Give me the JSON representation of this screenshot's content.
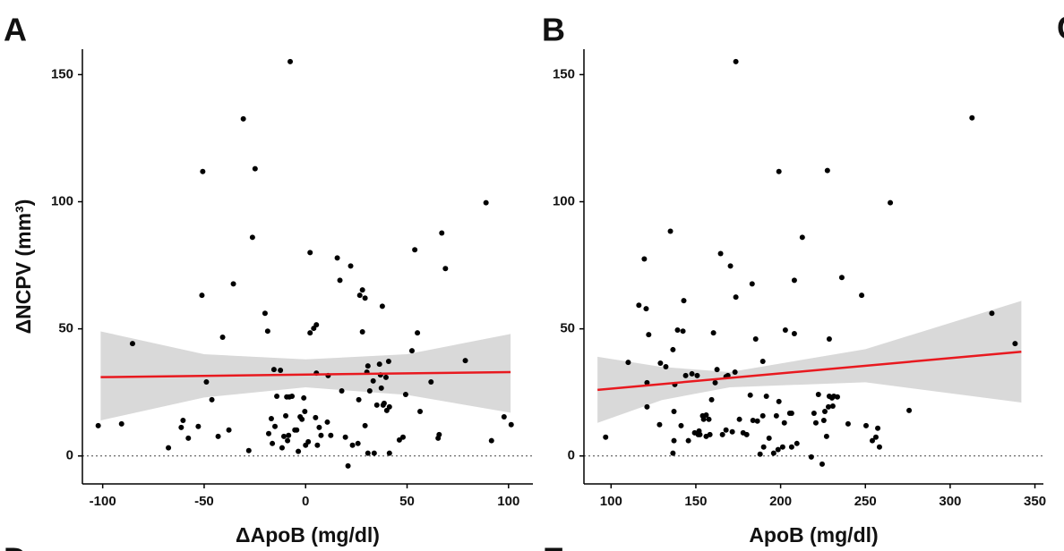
{
  "panel_labels": [
    "C",
    "D",
    "E"
  ],
  "chart_data": [
    {
      "type": "scatter",
      "panel": "A",
      "xlabel": "ΔApoB (mg/dl)",
      "ylabel": "ΔNCPV (mm³)",
      "xlim": [
        -110,
        112
      ],
      "ylim": [
        -11,
        160
      ],
      "xticks": [
        -100,
        -50,
        0,
        50,
        100
      ],
      "yticks": [
        0,
        50,
        100,
        150
      ],
      "reference_line": 0,
      "color": "#000000",
      "x": [
        -102.2,
        -90.7,
        -85.3,
        -67.6,
        -61.3,
        -60.4,
        -57.8,
        -52.9,
        -48.9,
        -46.2,
        -51.1,
        -43.1,
        -40.9,
        -37.8,
        -35.6,
        -50.7,
        -30.7,
        -26.2,
        -24.9,
        -20.0,
        -18.7,
        -28.0,
        -18.2,
        -16.9,
        -16.4,
        -15.6,
        -15.1,
        -14.2,
        -12.4,
        -11.6,
        -10.7,
        -9.8,
        -9.3,
        -8.9,
        -8.4,
        -8.0,
        -7.6,
        -6.7,
        -5.3,
        -4.4,
        -3.6,
        -2.7,
        -1.8,
        -0.9,
        -0.4,
        0,
        1.3,
        2.2,
        2.2,
        4.0,
        4.9,
        5.3,
        5.8,
        6.7,
        7.6,
        5.3,
        10.7,
        11.1,
        12.4,
        15.6,
        16.9,
        17.8,
        19.6,
        20.9,
        22.2,
        23.1,
        25.8,
        28.0,
        29.3,
        30.2,
        30.7,
        31.6,
        33.3,
        36.4,
        36.9,
        37.3,
        37.8,
        38.2,
        38.7,
        39.6,
        40.0,
        40.9,
        41.3,
        41.3,
        35.1,
        29.3,
        26.2,
        26.7,
        30.7,
        28.0,
        33.8,
        46.2,
        48.0,
        49.3,
        52.4,
        53.8,
        55.1,
        56.4,
        61.8,
        65.3,
        65.8,
        67.1,
        68.9,
        78.7,
        88.9,
        91.6,
        97.8,
        101.3
      ],
      "y": [
        11.9,
        12.6,
        44.2,
        3.2,
        11.2,
        14.0,
        7.0,
        11.6,
        29.1,
        22.1,
        63.2,
        7.7,
        46.7,
        10.2,
        67.7,
        111.9,
        132.6,
        86.0,
        113.0,
        56.1,
        49.1,
        2.1,
        8.8,
        14.7,
        4.9,
        34.0,
        11.6,
        23.5,
        33.7,
        3.2,
        7.7,
        15.8,
        23.2,
        6.0,
        8.1,
        23.2,
        155.1,
        23.5,
        10.2,
        10.2,
        1.8,
        15.4,
        14.4,
        22.8,
        17.5,
        4.2,
        5.6,
        80.0,
        48.4,
        50.2,
        15.1,
        51.6,
        4.2,
        11.2,
        8.1,
        32.6,
        13.3,
        31.6,
        8.1,
        77.9,
        69.1,
        25.6,
        7.4,
        -3.9,
        74.7,
        4.2,
        4.9,
        65.3,
        11.9,
        33.0,
        35.4,
        25.6,
        29.5,
        36.1,
        31.9,
        26.7,
        58.9,
        20.0,
        20.7,
        30.9,
        17.9,
        37.2,
        1.1,
        19.3,
        20.0,
        62.1,
        22.1,
        63.2,
        1.1,
        48.8,
        1.1,
        6.3,
        7.4,
        24.2,
        41.4,
        81.1,
        48.4,
        17.5,
        29.1,
        7.0,
        8.4,
        87.7,
        73.7,
        37.5,
        99.6,
        6.0,
        15.4,
        12.3
      ],
      "fit": {
        "x": [
          -101,
          101
        ],
        "y": [
          31,
          33
        ],
        "color": "#e8191f"
      },
      "band": {
        "x": [
          -101,
          -50,
          0,
          50,
          101
        ],
        "lower": [
          14,
          23,
          27,
          24,
          17
        ],
        "upper": [
          49,
          40,
          38,
          40,
          48
        ],
        "color": "#d9d9d9"
      }
    },
    {
      "type": "scatter",
      "panel": "B",
      "xlabel": "ApoB (mg/dl)",
      "xlim": [
        84,
        355
      ],
      "ylim": [
        -11,
        160
      ],
      "xticks": [
        100,
        150,
        200,
        250,
        300,
        350
      ],
      "yticks": [
        0,
        50,
        100,
        150
      ],
      "reference_line": 0,
      "color": "#000000",
      "x": [
        96.8,
        110.1,
        116.4,
        119.6,
        120.7,
        121.2,
        121.2,
        122.2,
        128.6,
        129.1,
        132.3,
        135.0,
        136.5,
        136.5,
        137.1,
        137.1,
        137.6,
        139.2,
        141.3,
        142.9,
        142.4,
        144.0,
        145.6,
        147.7,
        149.3,
        150.8,
        151.4,
        151.9,
        152.4,
        154.0,
        154.6,
        156.1,
        156.1,
        157.7,
        158.3,
        159.3,
        160.4,
        161.4,
        162.5,
        164.6,
        165.7,
        167.8,
        167.8,
        168.9,
        170.4,
        171.5,
        173.1,
        173.6,
        175.7,
        177.9,
        180.0,
        182.1,
        183.2,
        183.7,
        185.3,
        186.3,
        187.9,
        189.5,
        189.5,
        190.0,
        191.6,
        193.2,
        195.9,
        197.5,
        198.5,
        199.0,
        199.0,
        201.2,
        202.2,
        202.8,
        205.4,
        206.5,
        206.5,
        208.1,
        208.1,
        209.6,
        212.8,
        218.1,
        219.7,
        220.8,
        222.3,
        224.5,
        225.5,
        226.1,
        227.1,
        227.6,
        228.2,
        228.7,
        228.7,
        230.3,
        230.8,
        231.4,
        233.5,
        236.1,
        239.8,
        247.8,
        250.4,
        254.1,
        256.2,
        258.3,
        257.3,
        264.7,
        275.8,
        312.9,
        324.6,
        338.3,
        173.6
      ],
      "y": [
        7.4,
        36.8,
        59.3,
        77.5,
        57.9,
        19.3,
        28.8,
        47.7,
        12.3,
        36.5,
        35.1,
        88.4,
        41.8,
        1.1,
        6.0,
        17.5,
        28.1,
        49.5,
        11.9,
        61.1,
        49.1,
        31.6,
        6.0,
        32.3,
        9.1,
        31.6,
        8.4,
        9.8,
        8.4,
        15.8,
        14.4,
        7.7,
        16.1,
        14.4,
        8.4,
        22.1,
        48.4,
        28.8,
        34.0,
        79.6,
        8.4,
        31.2,
        10.2,
        31.6,
        74.7,
        9.5,
        33.0,
        62.5,
        14.4,
        9.1,
        8.4,
        23.9,
        67.7,
        14.0,
        46.0,
        13.7,
        0.7,
        37.2,
        15.8,
        3.5,
        23.5,
        7.0,
        1.1,
        15.8,
        2.5,
        21.4,
        111.9,
        3.5,
        13.0,
        49.5,
        16.8,
        16.8,
        3.5,
        48.1,
        69.1,
        4.9,
        86.0,
        -0.4,
        16.8,
        13.0,
        24.2,
        -3.2,
        14.0,
        17.5,
        7.7,
        112.3,
        19.3,
        46.0,
        23.5,
        22.8,
        19.6,
        23.5,
        23.2,
        70.2,
        12.6,
        63.2,
        11.9,
        6.0,
        7.4,
        3.5,
        10.9,
        99.6,
        17.9,
        133.0,
        56.1,
        44.2,
        155.1
      ],
      "fit": {
        "x": [
          92,
          342
        ],
        "y": [
          26,
          41
        ],
        "color": "#e8191f"
      },
      "band": {
        "x": [
          92,
          130,
          170,
          250,
          342
        ],
        "lower": [
          13,
          22,
          27,
          29,
          21
        ],
        "upper": [
          39,
          35,
          33,
          42,
          61
        ],
        "color": "#d9d9d9"
      }
    }
  ]
}
